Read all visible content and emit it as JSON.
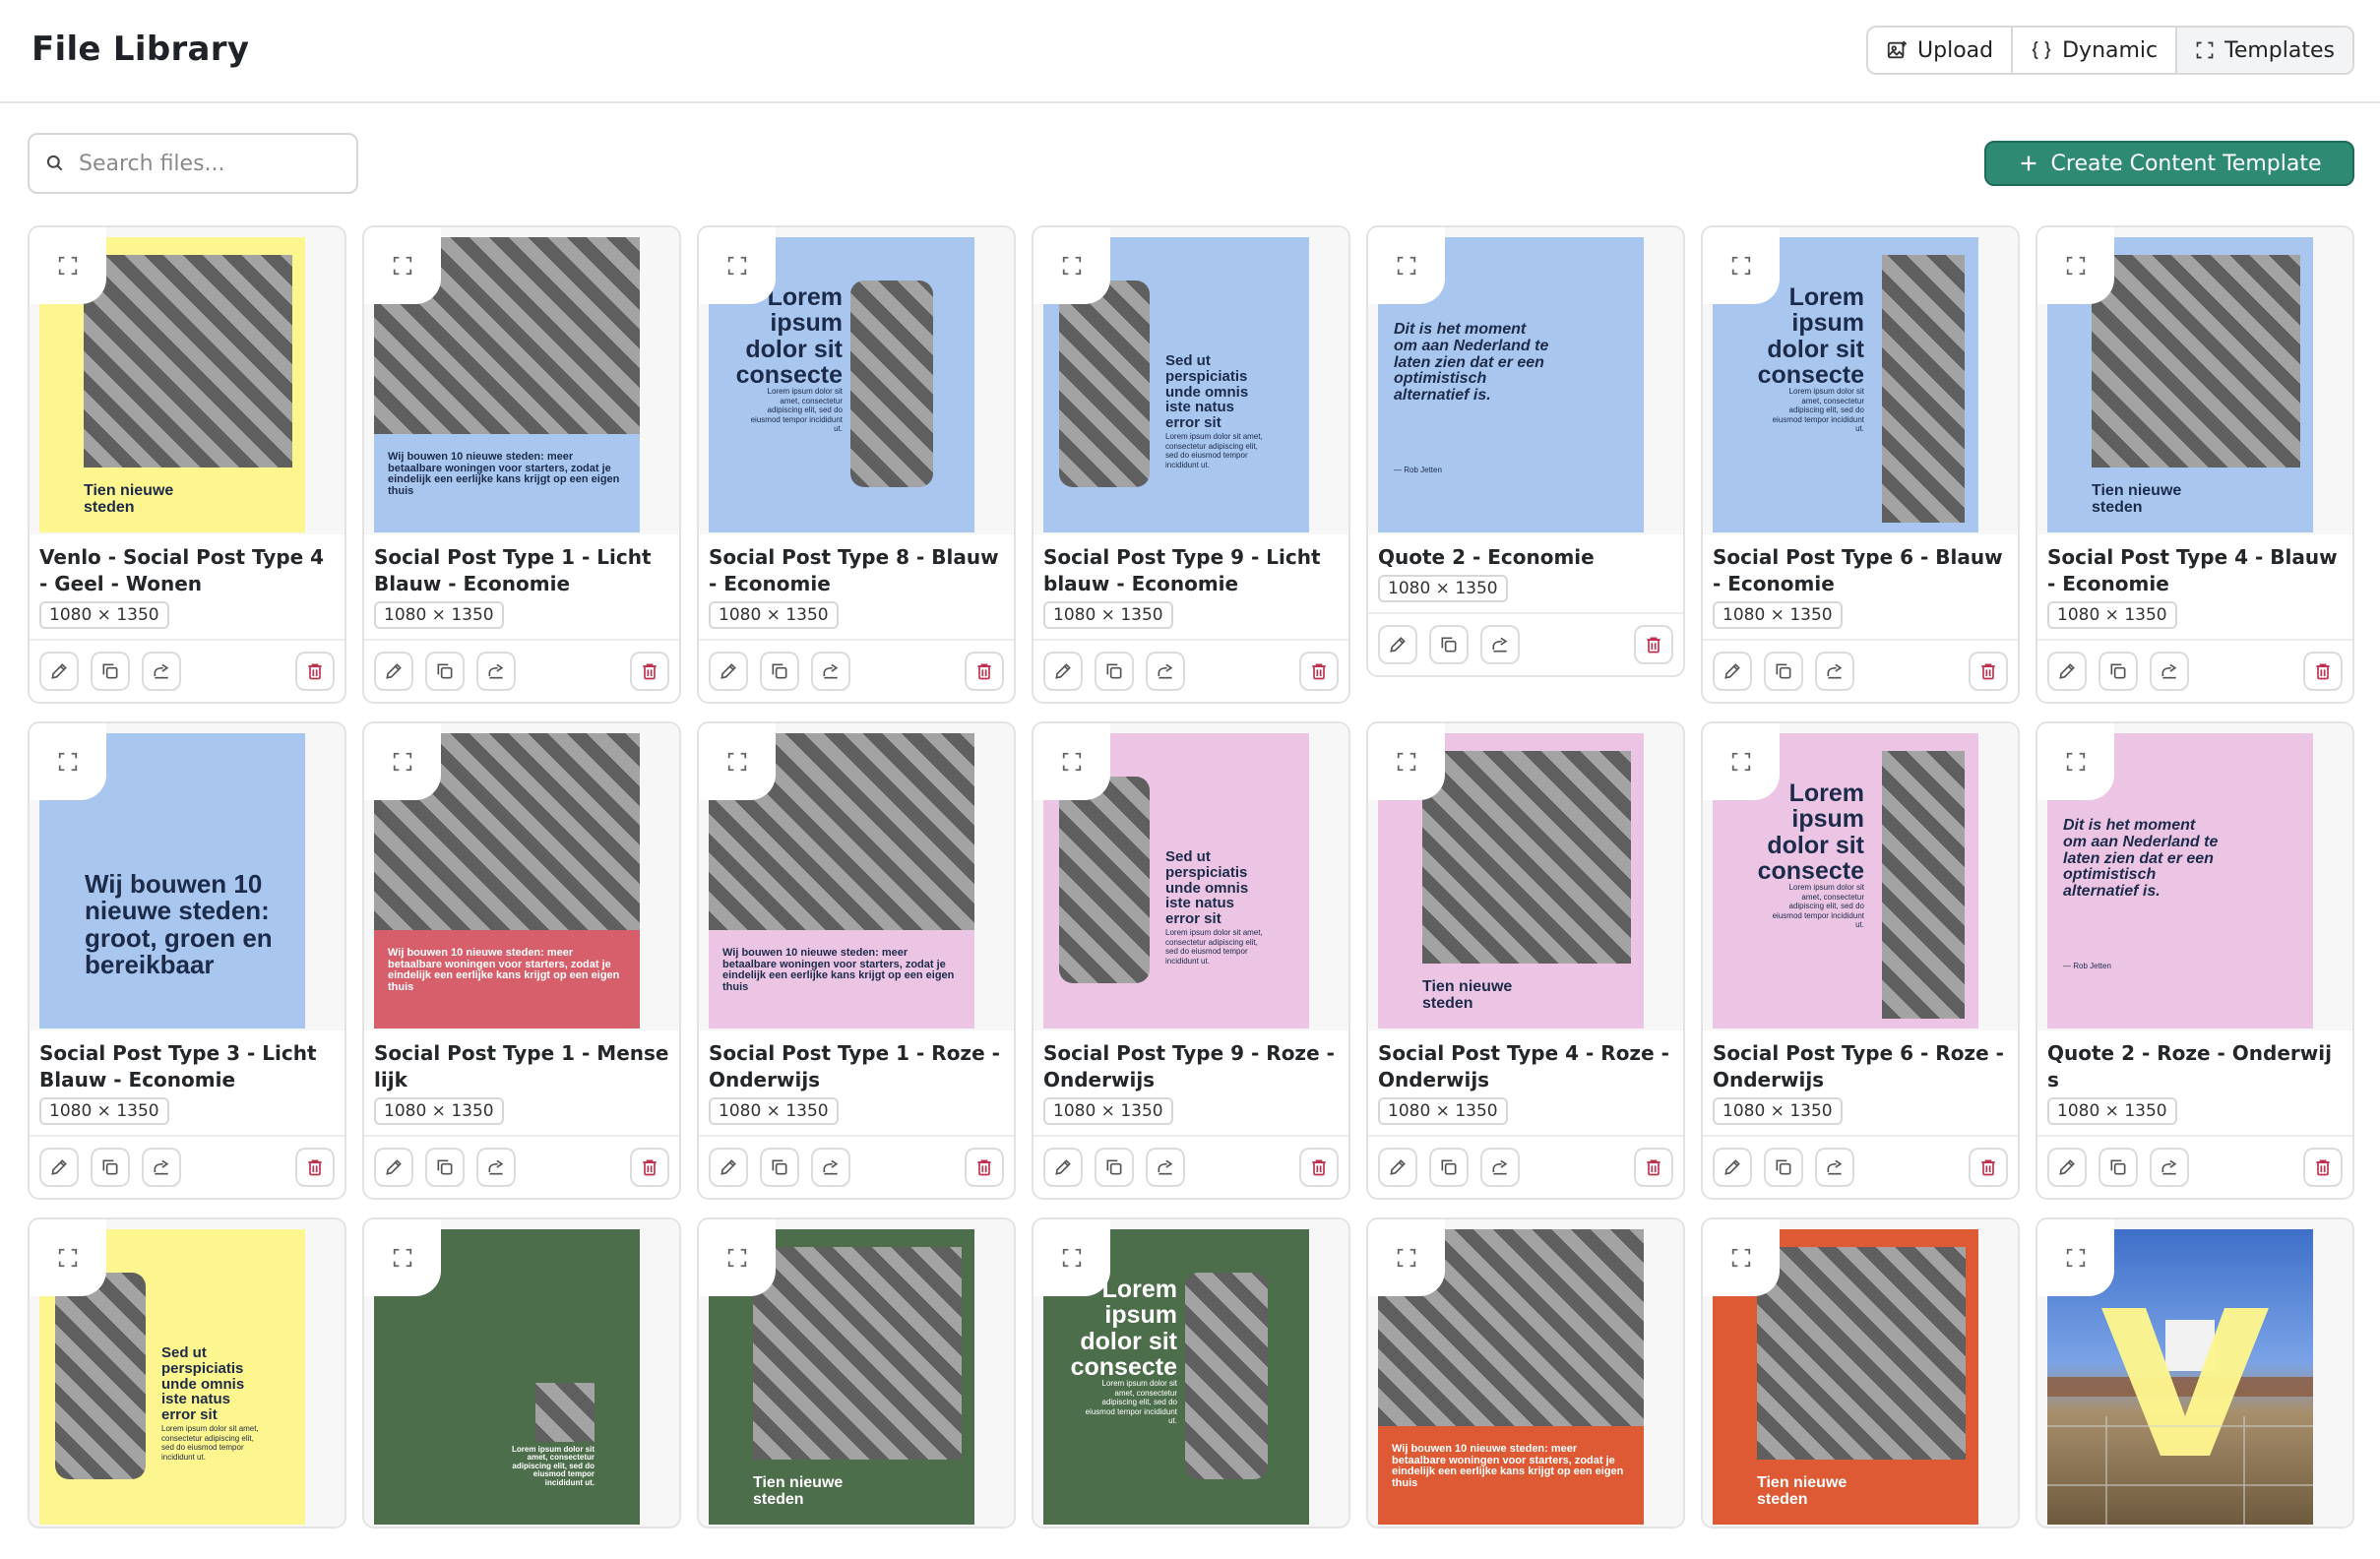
{
  "header": {
    "title": "File Library",
    "buttons": [
      {
        "label": "Upload",
        "icon": "image-upload-icon"
      },
      {
        "label": "Dynamic",
        "icon": "braces-icon"
      },
      {
        "label": "Templates",
        "icon": "frame-icon"
      }
    ]
  },
  "search": {
    "placeholder": "Search files..."
  },
  "create_button": {
    "label": "Create Content Template"
  },
  "colors": {
    "yellow": "#fdf58d",
    "blue": "#a9c6ef",
    "pink": "#ecc5e4",
    "red": "#d75f6b",
    "green": "#4d6e4b",
    "orange": "#dd5a35",
    "accent": "#2e8a73",
    "delete": "#c0314f"
  },
  "cards": [
    {
      "title": "Venlo - Social Post Type 4 - Geel - Wonen",
      "dims": "1080 × 1350",
      "thumb": {
        "layout": "type4",
        "bg": "yellow",
        "texts": [
          "Tien nieuwe steden"
        ]
      }
    },
    {
      "title": "Social Post Type 1 - Licht Blauw - Economie",
      "dims": "1080 × 1350",
      "thumb": {
        "layout": "type1",
        "bg": "blue",
        "texts": [
          "Wij bouwen 10 nieuwe steden: meer betaalbare woningen voor starters, zodat je eindelijk een eerlijke kans krijgt op een eigen thuis"
        ]
      }
    },
    {
      "title": "Social Post Type 8 - Blauw - Economie",
      "dims": "1080 × 1350",
      "thumb": {
        "layout": "type8",
        "bg": "blue",
        "texts": [
          "Lorem ipsum dolor sit consecte",
          "Lorem ipsum dolor sit amet, consectetur adipiscing elit, sed do eiusmod tempor incididunt ut."
        ]
      }
    },
    {
      "title": "Social Post Type 9 - Licht blauw - Economie",
      "dims": "1080 × 1350",
      "thumb": {
        "layout": "type9",
        "bg": "blue",
        "texts": [
          "Sed ut perspiciatis unde omnis iste natus error sit",
          "Lorem ipsum dolor sit amet, consectetur adipiscing elit, sed do eiusmod tempor incididunt ut."
        ]
      }
    },
    {
      "title": "Quote 2 - Economie",
      "dims": "1080 × 1350",
      "thumb": {
        "layout": "quote",
        "bg": "blue",
        "texts": [
          "Dit is het moment om aan Nederland te laten zien dat er een optimistisch alternatief is.",
          "— Rob Jetten"
        ]
      }
    },
    {
      "title": "Social Post Type 6 - Blauw - Economie",
      "dims": "1080 × 1350",
      "thumb": {
        "layout": "type6",
        "bg": "blue",
        "texts": [
          "Lorem ipsum dolor sit consecte",
          "Lorem ipsum dolor sit amet, consectetur adipiscing elit, sed do eiusmod tempor incididunt ut."
        ]
      }
    },
    {
      "title": "Social Post Type 4 - Blauw - Economie",
      "dims": "1080 × 1350",
      "thumb": {
        "layout": "type4",
        "bg": "blue",
        "texts": [
          "Tien nieuwe steden"
        ]
      }
    },
    {
      "title": "Social Post Type 3 - Licht Blauw - Economie",
      "dims": "1080 × 1350",
      "thumb": {
        "layout": "type3",
        "bg": "blue",
        "texts": [
          "Wij bouwen 10 nieuwe steden: groot, groen en bereikbaar"
        ]
      }
    },
    {
      "title": "Social Post Type 1 - Menselijk",
      "dims": "1080 × 1350",
      "thumb": {
        "layout": "type1",
        "bg": "red",
        "texts": [
          "Wij bouwen 10 nieuwe steden: meer betaalbare woningen voor starters, zodat je eindelijk een eerlijke kans krijgt op een eigen thuis"
        ]
      }
    },
    {
      "title": "Social Post Type 1 - Roze - Onderwijs",
      "dims": "1080 × 1350",
      "thumb": {
        "layout": "type1",
        "bg": "pink",
        "texts": [
          "Wij bouwen 10 nieuwe steden: meer betaalbare woningen voor starters, zodat je eindelijk een eerlijke kans krijgt op een eigen thuis"
        ]
      }
    },
    {
      "title": "Social Post Type 9 - Roze - Onderwijs",
      "dims": "1080 × 1350",
      "thumb": {
        "layout": "type9",
        "bg": "pink",
        "texts": [
          "Sed ut perspiciatis unde omnis iste natus error sit",
          "Lorem ipsum dolor sit amet, consectetur adipiscing elit, sed do eiusmod tempor incididunt ut."
        ]
      }
    },
    {
      "title": "Social Post Type 4 - Roze - Onderwijs",
      "dims": "1080 × 1350",
      "thumb": {
        "layout": "type4",
        "bg": "pink",
        "texts": [
          "Tien nieuwe steden"
        ]
      }
    },
    {
      "title": "Social Post Type 6 - Roze - Onderwijs",
      "dims": "1080 × 1350",
      "thumb": {
        "layout": "type6",
        "bg": "pink",
        "texts": [
          "Lorem ipsum dolor sit consecte",
          "Lorem ipsum dolor sit amet, consectetur adipiscing elit, sed do eiusmod tempor incididunt ut."
        ]
      }
    },
    {
      "title": "Quote 2 - Roze - Onderwijs",
      "dims": "1080 × 1350",
      "thumb": {
        "layout": "quote",
        "bg": "pink",
        "texts": [
          "Dit is het moment om aan Nederland te laten zien dat er een optimistisch alternatief is.",
          "— Rob Jetten"
        ]
      }
    },
    {
      "title": "",
      "dims": "",
      "thumb": {
        "layout": "type9",
        "bg": "yellow",
        "texts": [
          "Sed ut perspiciatis unde omnis iste natus error sit",
          "Lorem ipsum dolor sit amet, consectetur adipiscing elit, sed do eiusmod tempor incididunt ut."
        ]
      }
    },
    {
      "title": "",
      "dims": "",
      "thumb": {
        "layout": "small",
        "bg": "green",
        "texts": [
          "Lorem ipsum dolor sit amet, consectetur adipiscing elit, sed do eiusmod tempor incididunt ut."
        ]
      }
    },
    {
      "title": "",
      "dims": "",
      "thumb": {
        "layout": "type4",
        "bg": "green",
        "texts": [
          "Tien nieuwe steden"
        ]
      }
    },
    {
      "title": "",
      "dims": "",
      "thumb": {
        "layout": "type8",
        "bg": "green",
        "texts": [
          "Lorem ipsum dolor sit consecte",
          "Lorem ipsum dolor sit amet, consectetur adipiscing elit, sed do eiusmod tempor incididunt ut."
        ]
      }
    },
    {
      "title": "",
      "dims": "",
      "thumb": {
        "layout": "type1",
        "bg": "orange",
        "texts": [
          "Wij bouwen 10 nieuwe steden: meer betaalbare woningen voor starters, zodat je eindelijk een eerlijke kans krijgt op een eigen thuis"
        ]
      }
    },
    {
      "title": "",
      "dims": "",
      "thumb": {
        "layout": "type4",
        "bg": "orange",
        "texts": [
          "Tien nieuwe steden"
        ]
      }
    },
    {
      "title": "",
      "dims": "",
      "thumb": {
        "layout": "photo",
        "bg": "blue",
        "texts": []
      }
    }
  ],
  "card_actions": [
    "edit-icon",
    "duplicate-icon",
    "share-icon",
    "trash-icon"
  ],
  "card_expand_icon": "expand-icon"
}
